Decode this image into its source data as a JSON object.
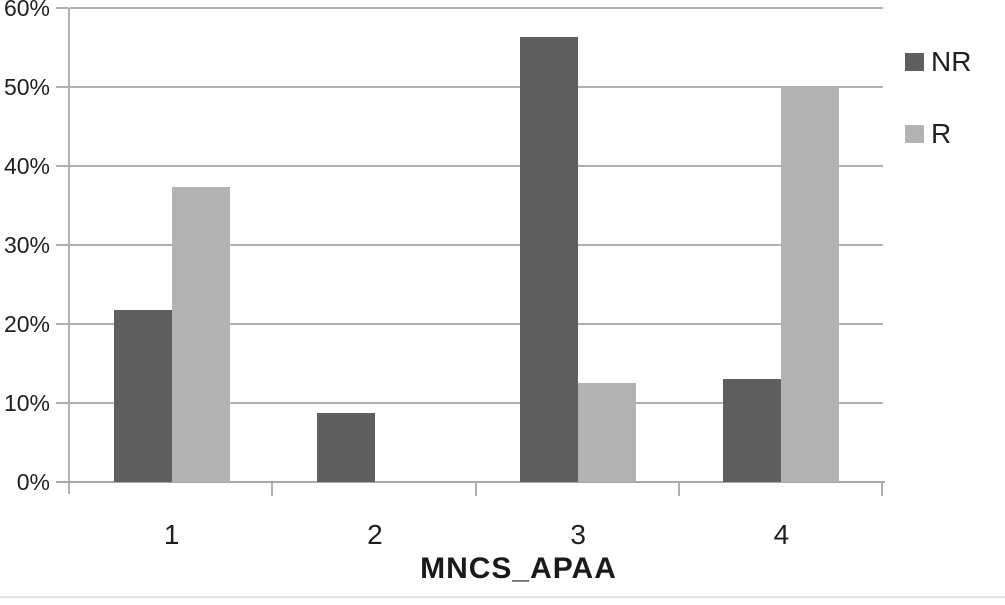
{
  "chart_data": {
    "type": "bar",
    "title": "",
    "xlabel": "MNCS_APAA",
    "ylabel": "",
    "categories": [
      "1",
      "2",
      "3",
      "4"
    ],
    "series": [
      {
        "name": "NR",
        "color": "#5f5f5f",
        "values": [
          21.8,
          8.7,
          56.3,
          13.0
        ]
      },
      {
        "name": "R",
        "color": "#b3b3b3",
        "values": [
          37.3,
          0.0,
          12.5,
          50.0
        ]
      }
    ],
    "ylim": [
      0,
      60
    ],
    "ytick_step": 10,
    "ytick_labels": [
      "0%",
      "10%",
      "20%",
      "30%",
      "40%",
      "50%",
      "60%"
    ],
    "grid": true,
    "legend_position": "top-right",
    "value_unit": "percent"
  },
  "colors": {
    "gridline": "#b0b0b0",
    "axis": "#a8a8a8",
    "text": "#1f1f1f",
    "bottom_border": "#dbe7e7"
  }
}
